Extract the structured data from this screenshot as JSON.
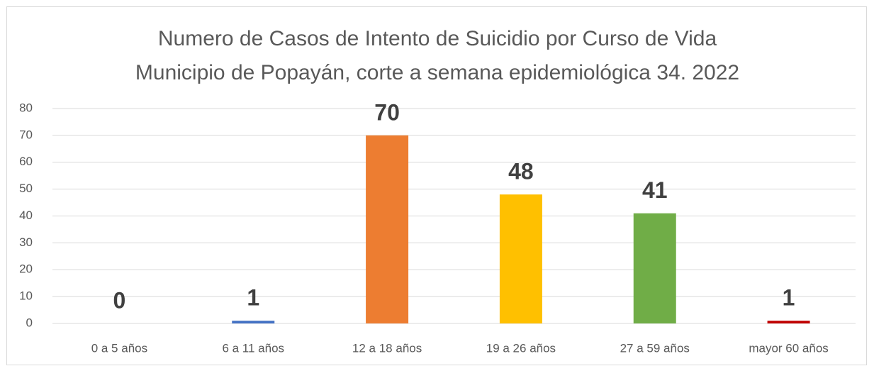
{
  "chart_data": {
    "type": "bar",
    "title": [
      "Numero de Casos de Intento de Suicidio por Curso de Vida",
      "Municipio de Popayán, corte a semana epidemiológica 34. 2022"
    ],
    "categories": [
      "0 a 5 años",
      "6 a 11 años",
      "12 a 18 años",
      "19 a 26 años",
      "27 a 59 años",
      "mayor 60 años"
    ],
    "values": [
      0,
      1,
      70,
      48,
      41,
      1
    ],
    "colors": [
      "#4472c4",
      "#4472c4",
      "#ed7d31",
      "#ffc000",
      "#70ad47",
      "#c00000"
    ],
    "ylim": [
      0,
      80
    ],
    "yticks": [
      0,
      10,
      20,
      30,
      40,
      50,
      60,
      70,
      80
    ],
    "grid": true
  }
}
